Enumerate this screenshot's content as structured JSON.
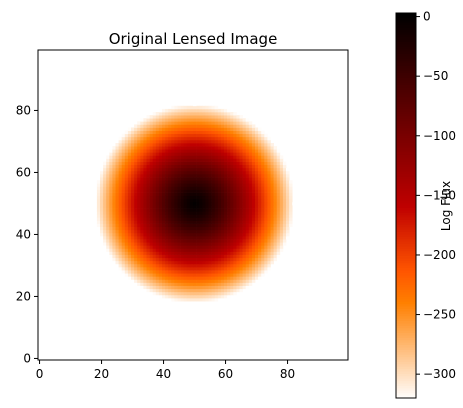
{
  "chart_data": {
    "type": "heatmap",
    "title": "Original Lensed Image",
    "xlabel": "",
    "ylabel": "",
    "xlim": [
      0,
      99
    ],
    "ylim": [
      0,
      99
    ],
    "xticks": [
      0,
      20,
      40,
      60,
      80
    ],
    "yticks": [
      0,
      20,
      40,
      60,
      80
    ],
    "grid": false,
    "image": {
      "shape": "disk",
      "center": [
        50,
        50
      ],
      "radius": 32,
      "value_at_center": 0,
      "value_at_edge": -320,
      "background": "none"
    },
    "colorbar": {
      "label": "Log Flux",
      "colormap": "gist_heat_r",
      "range": [
        -320,
        3
      ],
      "ticks": [
        0,
        -50,
        -100,
        -150,
        -200,
        -250,
        -300
      ],
      "tick_labels": [
        "0",
        "−50",
        "−100",
        "−150",
        "−200",
        "−250",
        "−300"
      ]
    }
  }
}
